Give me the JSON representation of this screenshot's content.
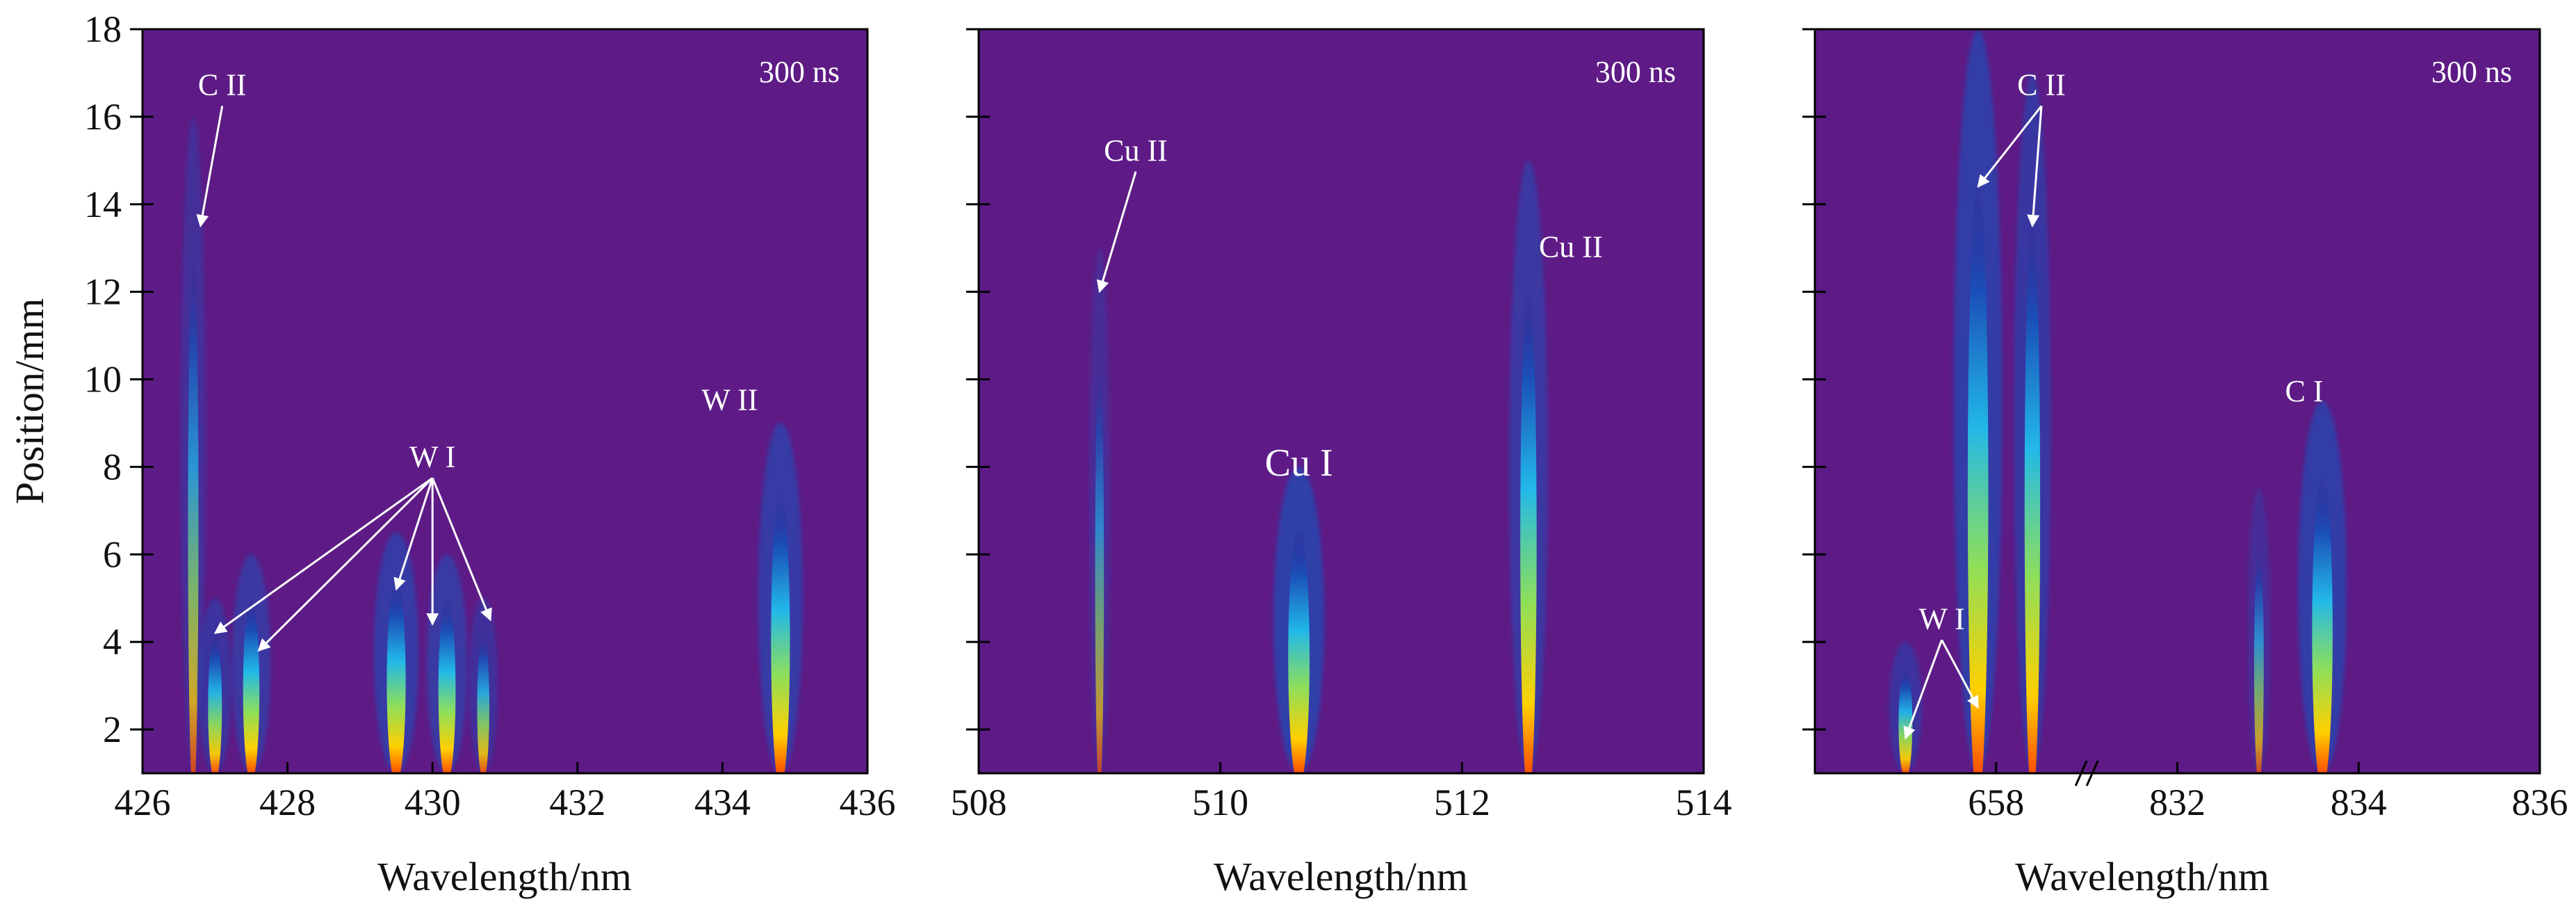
{
  "chart_data": [
    {
      "type": "heatmap",
      "panel": "left",
      "xlabel": "Wavelength/nm",
      "ylabel": "Position/mm",
      "xlim": [
        426,
        436
      ],
      "ylim": [
        1,
        18
      ],
      "xticks": [
        426,
        428,
        430,
        432,
        434,
        436
      ],
      "yticks": [
        2,
        4,
        6,
        8,
        10,
        12,
        14,
        16,
        18
      ],
      "time_label": "300 ns",
      "lines": [
        {
          "wavelength": 426.7,
          "intensity": 0.35,
          "y_extent": 16
        },
        {
          "wavelength": 427.0,
          "intensity": 0.55,
          "y_extent": 5
        },
        {
          "wavelength": 427.5,
          "intensity": 0.7,
          "y_extent": 6
        },
        {
          "wavelength": 429.5,
          "intensity": 0.85,
          "y_extent": 6.5
        },
        {
          "wavelength": 430.2,
          "intensity": 0.75,
          "y_extent": 6
        },
        {
          "wavelength": 430.7,
          "intensity": 0.45,
          "y_extent": 5
        },
        {
          "wavelength": 434.8,
          "intensity": 0.85,
          "y_extent": 9
        }
      ],
      "annotations": [
        {
          "text": "C II",
          "x": 427.1,
          "y": 16.5,
          "targets": [
            [
              426.8,
              13.5
            ]
          ]
        },
        {
          "text": "W I",
          "x": 430.0,
          "y": 8.0,
          "targets": [
            [
              427.0,
              4.2
            ],
            [
              427.6,
              3.8
            ],
            [
              429.5,
              5.2
            ],
            [
              430.0,
              4.4
            ],
            [
              430.8,
              4.5
            ]
          ]
        },
        {
          "text": "W II",
          "x": 434.1,
          "y": 9.3,
          "targets": []
        }
      ]
    },
    {
      "type": "heatmap",
      "panel": "middle",
      "xlabel": "Wavelength/nm",
      "ylabel": "",
      "xlim": [
        508,
        514
      ],
      "ylim": [
        1,
        18
      ],
      "xticks": [
        508,
        510,
        512,
        514
      ],
      "yticks": [
        2,
        4,
        6,
        8,
        10,
        12,
        14,
        16,
        18
      ],
      "time_label": "300 ns",
      "lines": [
        {
          "wavelength": 509.0,
          "intensity": 0.25,
          "y_extent": 13
        },
        {
          "wavelength": 510.65,
          "intensity": 1.0,
          "y_extent": 8
        },
        {
          "wavelength": 512.55,
          "intensity": 0.7,
          "y_extent": 15
        }
      ],
      "annotations": [
        {
          "text": "Cu II",
          "x": 509.3,
          "y": 15.0,
          "targets": [
            [
              509.0,
              12.0
            ]
          ]
        },
        {
          "text": "Cu I",
          "x": 510.65,
          "y": 7.8,
          "targets": []
        },
        {
          "text": "Cu II",
          "x": 512.9,
          "y": 12.8,
          "targets": []
        }
      ]
    },
    {
      "type": "heatmap",
      "panel": "right",
      "xlabel": "Wavelength/nm",
      "ylabel": "",
      "xlim": [
        656,
        836
      ],
      "axis_break": [
        659,
        831
      ],
      "ylim": [
        1,
        18
      ],
      "xticks": [
        658,
        832,
        834,
        836
      ],
      "yticks": [
        2,
        4,
        6,
        8,
        10,
        12,
        14,
        16,
        18
      ],
      "time_label": "300 ns",
      "lines": [
        {
          "wavelength": 657.0,
          "intensity": 0.55,
          "y_extent": 4
        },
        {
          "wavelength": 657.8,
          "intensity": 0.95,
          "y_extent": 18
        },
        {
          "wavelength": 658.4,
          "intensity": 0.65,
          "y_extent": 17
        },
        {
          "wavelength": 832.9,
          "intensity": 0.3,
          "y_extent": 7.5
        },
        {
          "wavelength": 833.6,
          "intensity": 0.95,
          "y_extent": 9.5
        }
      ],
      "annotations": [
        {
          "text": "C II",
          "x": 658.5,
          "y": 16.5,
          "targets": [
            [
              657.8,
              14.4
            ],
            [
              658.4,
              13.5
            ]
          ]
        },
        {
          "text": "C I",
          "x": 833.4,
          "y": 9.5,
          "targets": []
        },
        {
          "text": "W I",
          "x": 657.4,
          "y": 4.3,
          "targets": [
            [
              657.0,
              1.8
            ],
            [
              657.8,
              2.5
            ]
          ]
        }
      ]
    }
  ]
}
